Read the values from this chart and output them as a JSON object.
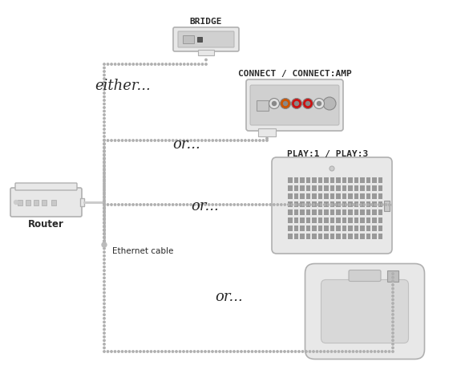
{
  "bg_color": "#ffffff",
  "text_color": "#2a2a2a",
  "device_color_light": "#e8e8e8",
  "device_color_mid": "#d0d0d0",
  "device_edge": "#b0b0b0",
  "dot_color": "#b0b0b0",
  "solid_line_color": "#cccccc",
  "labels": {
    "bridge": "BRIDGE",
    "connect": "CONNECT / CONNECT:AMP",
    "play": "PLAY:1 / PLAY:3",
    "either": "either...",
    "or1": "or...",
    "or2": "or...",
    "or3": "or...",
    "router": "Router",
    "ethernet": "Ethernet cable"
  },
  "figsize": [
    5.8,
    4.71
  ],
  "dpi": 100
}
